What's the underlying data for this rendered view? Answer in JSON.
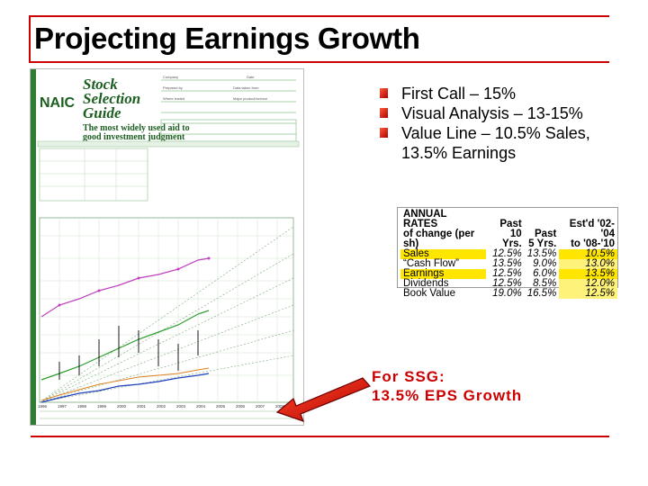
{
  "slide": {
    "title": "Projecting Earnings Growth",
    "bullets": [
      "First Call – 15%",
      "Visual Analysis – 13-15%",
      "Value Line – 10.5% Sales, 13.5% Earnings"
    ],
    "annotation_line1": "For SSG:",
    "annotation_line2": "13.5% EPS Growth",
    "colors": {
      "accent": "#cc0000",
      "highlight": "#ffe600"
    }
  },
  "rates_table": {
    "header_label_1": "ANNUAL RATES",
    "header_label_2": "of change (per sh)",
    "columns": [
      {
        "h1": "Past",
        "h2": "10 Yrs."
      },
      {
        "h1": "Past",
        "h2": "5 Yrs."
      },
      {
        "h1": "Est'd '02-'04",
        "h2": "to '08-'10"
      }
    ],
    "rows": [
      {
        "label": "Sales",
        "values": [
          "12.5%",
          "13.5%",
          "10.5%"
        ],
        "highlight": true
      },
      {
        "label": "“Cash Flow”",
        "values": [
          "13.5%",
          "9.0%",
          "13.0%"
        ],
        "highlight": false
      },
      {
        "label": "Earnings",
        "values": [
          "12.5%",
          "6.0%",
          "13.5%"
        ],
        "highlight": true
      },
      {
        "label": "Dividends",
        "values": [
          "12.5%",
          "8.5%",
          "12.0%"
        ],
        "highlight": false
      },
      {
        "label": "Book Value",
        "values": [
          "19.0%",
          "16.5%",
          "12.5%"
        ],
        "highlight": false
      }
    ]
  },
  "ssg_form": {
    "logo": "NAIC",
    "heading_line1": "Stock",
    "heading_line2": "Selection",
    "heading_line3": "Guide",
    "tagline_line1": "The most widely used aid to",
    "tagline_line2": "good investment judgment",
    "x_labels": [
      "1996",
      "1997",
      "1998",
      "1999",
      "2000",
      "2001",
      "2002",
      "2003",
      "2004",
      "2005",
      "2006",
      "2007",
      "2008"
    ]
  }
}
